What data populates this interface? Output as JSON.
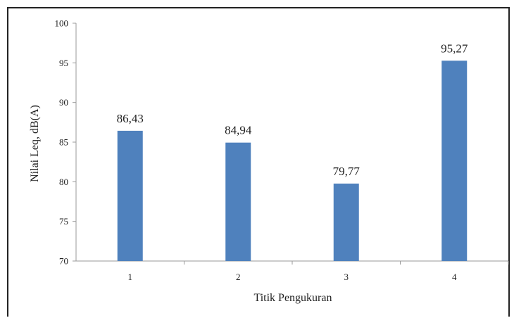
{
  "chart_data": {
    "type": "bar",
    "categories": [
      "1",
      "2",
      "3",
      "4"
    ],
    "values": [
      86.43,
      84.94,
      79.77,
      95.27
    ],
    "value_labels": [
      "86,43",
      "84,94",
      "79,77",
      "95,27"
    ],
    "xlabel": "Titik Pengukuran",
    "ylabel": "Nilai Leq, dB(A)",
    "ylim": [
      70,
      100
    ],
    "yticks": [
      70,
      75,
      80,
      85,
      90,
      95,
      100
    ],
    "grid": false,
    "bar_color": "#4f81bd",
    "axis_color": "#9a9a9a"
  }
}
